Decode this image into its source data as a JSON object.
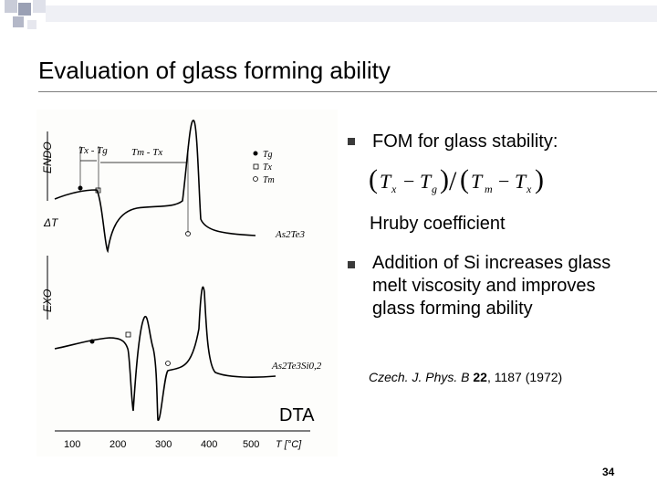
{
  "slide": {
    "title": "Evaluation of glass forming ability",
    "page_number": "34"
  },
  "bullets": [
    {
      "text": "FOM for glass stability:"
    },
    {
      "text": "Addition of Si increases glass melt viscosity and improves glass forming ability"
    }
  ],
  "hruby": "Hruby coefficient",
  "citation": {
    "journal": "Czech. J. Phys. B",
    "volume": "22",
    "rest": ", 1187 (1972)"
  },
  "figure": {
    "label": "DTA",
    "y_top": "ENDO",
    "y_mid": "ΔT",
    "y_bottom": "EXO",
    "x_unit": "T [°C]",
    "x_ticks": [
      "100",
      "200",
      "300",
      "400",
      "500"
    ],
    "ann_left": "Tx - Tg",
    "ann_right": "Tm - Tx",
    "legend": [
      "Tg",
      "Tx",
      "Tm"
    ],
    "curve1": "As2Te3",
    "curve2": "As2Te3Si0,2"
  },
  "colors": {
    "bullet": "#3a3a3a",
    "rule": "#7f7f7f",
    "deco": "#9aa0b4"
  }
}
